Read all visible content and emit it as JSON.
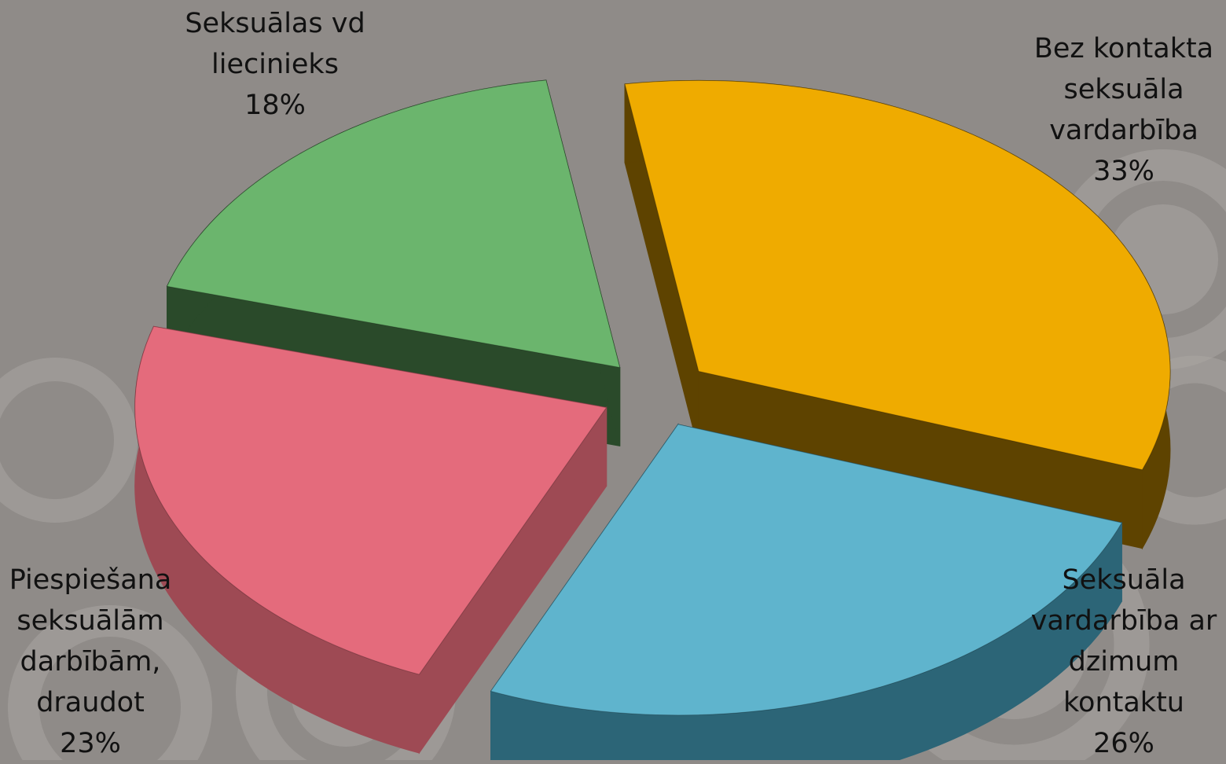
{
  "chart_data": {
    "type": "pie",
    "title": "",
    "legend": "none",
    "slices": [
      {
        "label": [
          "Bez kontakta",
          "seksuāla",
          "vardarbība"
        ],
        "pct_label": "33%",
        "value": 33,
        "color": "#efab00",
        "side": "#5e4300"
      },
      {
        "label": [
          "Seksuāla",
          "vardarbība ar",
          "dzimum",
          "kontaktu"
        ],
        "pct_label": "26%",
        "value": 26,
        "color": "#5fb4cd",
        "side": "#2c6577"
      },
      {
        "label": [
          "Piespiešana",
          "seksuālām",
          "darbībām,",
          "draudot"
        ],
        "pct_label": "23%",
        "value": 23,
        "color": "#e46b7c",
        "side": "#9e4a54"
      },
      {
        "label": [
          "Seksuālas vd",
          "liecinieks"
        ],
        "pct_label": "18%",
        "value": 18,
        "color": "#6bb56d",
        "side": "#2a4a2a"
      }
    ]
  }
}
